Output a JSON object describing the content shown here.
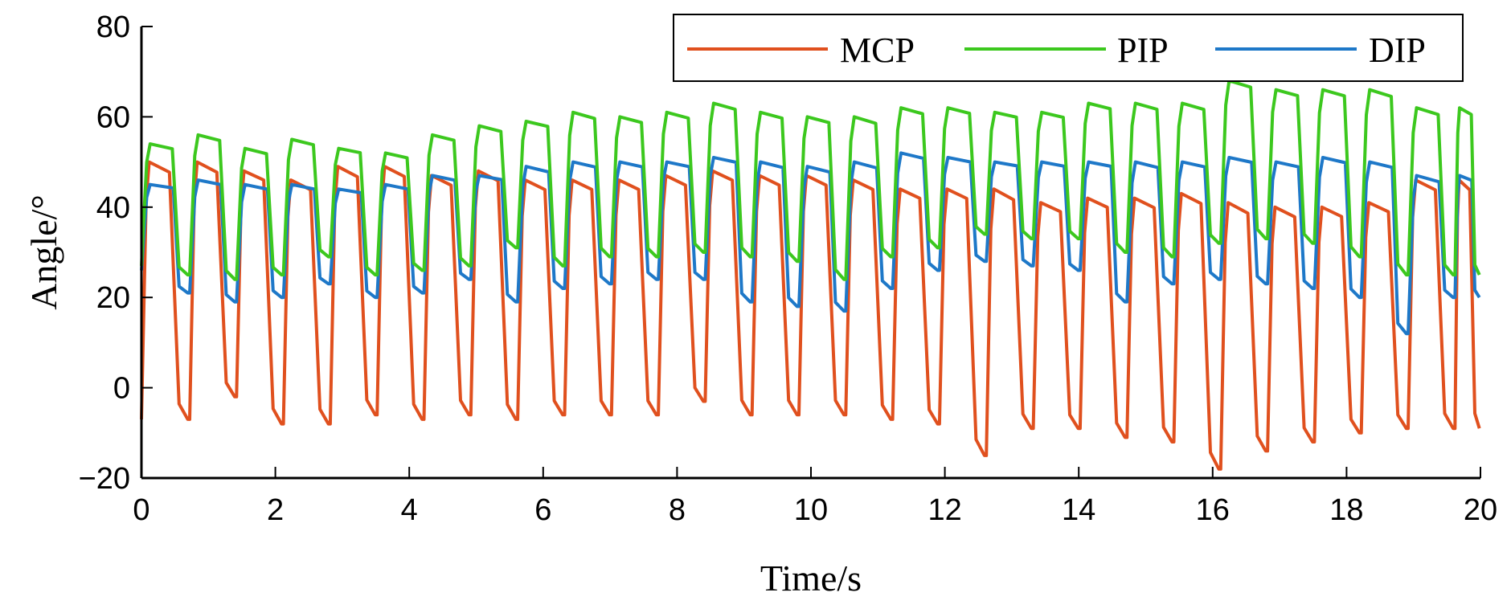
{
  "chart_data": {
    "type": "line",
    "title": "",
    "xlabel": "Time/s",
    "ylabel": "Angle/°",
    "xlim": [
      0,
      20
    ],
    "ylim": [
      -20,
      80
    ],
    "xticks": [
      0,
      2,
      4,
      6,
      8,
      10,
      12,
      14,
      16,
      18,
      20
    ],
    "yticks": [
      -20,
      0,
      20,
      40,
      60,
      80
    ],
    "xtick_labels": [
      "0",
      "2",
      "4",
      "6",
      "8",
      "10",
      "12",
      "14",
      "16",
      "18",
      "20"
    ],
    "ytick_labels": [
      "−20",
      "0",
      "20",
      "40",
      "60",
      "80"
    ],
    "grid": false,
    "legend_position": "top-right",
    "cycle_starts": [
      0,
      0.72,
      1.42,
      2.12,
      2.82,
      3.52,
      4.22,
      4.92,
      5.62,
      6.32,
      7.02,
      7.72,
      8.42,
      9.12,
      9.82,
      10.52,
      11.22,
      11.92,
      12.62,
      13.32,
      14.02,
      14.72,
      15.42,
      16.12,
      16.82,
      17.52,
      18.22,
      18.92,
      19.62
    ],
    "series": [
      {
        "name": "MCP",
        "color": "#E0501E",
        "high": [
          50,
          50,
          48,
          46,
          49,
          49,
          47,
          48,
          46,
          46,
          46,
          47,
          48,
          47,
          47,
          46,
          44,
          44,
          44,
          41,
          42,
          42,
          43,
          41,
          40,
          40,
          41,
          46,
          46
        ],
        "low": [
          -7,
          -7,
          -2,
          -8,
          -8,
          -6,
          -7,
          -6,
          -7,
          -6,
          -6,
          -6,
          -3,
          -6,
          -6,
          -6,
          -7,
          -8,
          -15,
          -9,
          -9,
          -11,
          -12,
          -18,
          -14,
          -12,
          -10,
          -9,
          -9
        ]
      },
      {
        "name": "PIP",
        "color": "#3CC81E",
        "high": [
          54,
          56,
          53,
          55,
          53,
          52,
          56,
          58,
          59,
          61,
          60,
          61,
          63,
          61,
          60,
          60,
          62,
          62,
          61,
          61,
          63,
          63,
          63,
          68,
          66,
          66,
          66,
          62,
          62
        ],
        "low": [
          27,
          25,
          24,
          25,
          29,
          25,
          26,
          27,
          31,
          27,
          29,
          29,
          30,
          29,
          28,
          24,
          29,
          31,
          34,
          33,
          33,
          30,
          29,
          32,
          33,
          32,
          29,
          25,
          25
        ]
      },
      {
        "name": "DIP",
        "color": "#1E78C8",
        "high": [
          45,
          46,
          45,
          45,
          44,
          45,
          47,
          47,
          49,
          50,
          50,
          50,
          51,
          50,
          49,
          50,
          52,
          51,
          50,
          50,
          50,
          50,
          50,
          51,
          50,
          51,
          50,
          47,
          47
        ],
        "low": [
          26,
          21,
          19,
          20,
          23,
          20,
          21,
          24,
          19,
          22,
          23,
          24,
          24,
          19,
          18,
          17,
          22,
          26,
          28,
          27,
          26,
          19,
          23,
          24,
          23,
          22,
          20,
          12,
          20
        ]
      }
    ]
  }
}
